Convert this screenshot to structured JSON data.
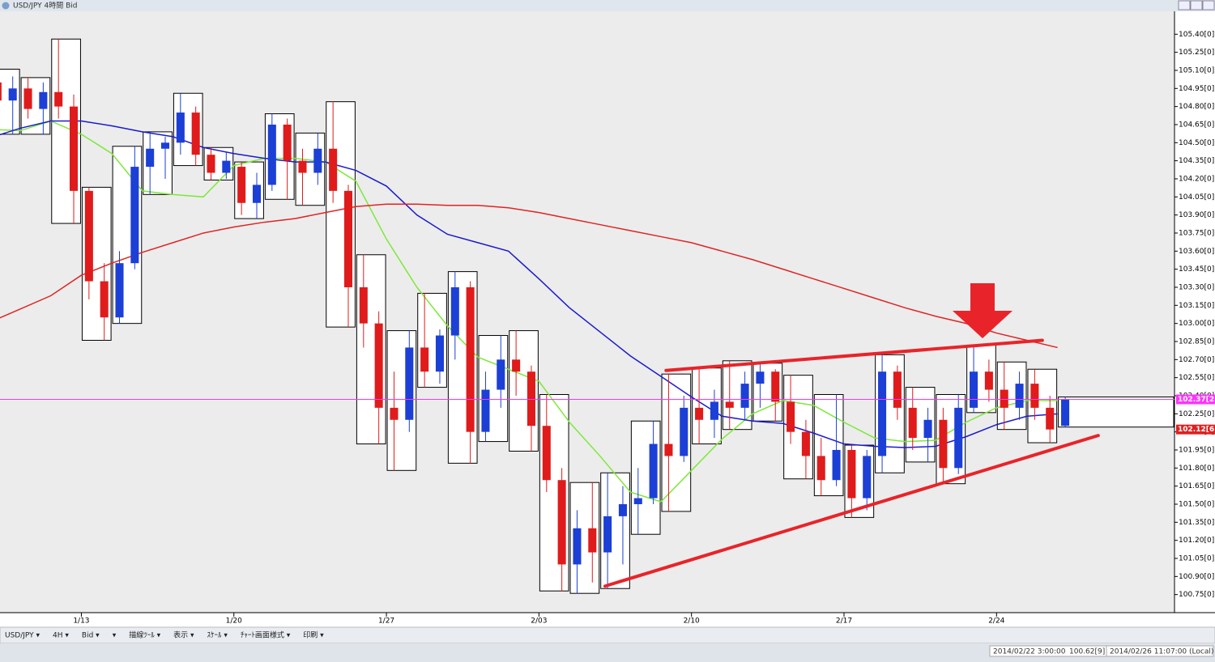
{
  "window": {
    "title": "USD/JPY 4時間 Bid"
  },
  "toolbar": {
    "items": [
      "USD/JPY ▾",
      "4H ▾",
      "Bid ▾",
      "▾",
      "描線ﾂｰﾙ ▾",
      "表示 ▾",
      "ｽｹｰﾙ ▾",
      "ﾁｬｰﾄ画面様式 ▾",
      "印刷 ▾"
    ]
  },
  "status": {
    "cursor_time": "2014/02/22 3:00:00",
    "cursor_price": "100.62[9]",
    "local_time": "2014/02/26 11:07:00 (Local)"
  },
  "chart_data": {
    "type": "candlestick",
    "xlim": [
      2,
      233
    ],
    "ylim": [
      100.6,
      105.59
    ],
    "xticks": [
      {
        "value": 18,
        "label": "1/13"
      },
      {
        "value": 48,
        "label": "1/20"
      },
      {
        "value": 78,
        "label": "1/27"
      },
      {
        "value": 108,
        "label": "2/03"
      },
      {
        "value": 138,
        "label": "2/10"
      },
      {
        "value": 168,
        "label": "2/17"
      },
      {
        "value": 198,
        "label": "2/24"
      }
    ],
    "yticks": [
      {
        "value": 100.75,
        "label": "100.75[0]"
      },
      {
        "value": 100.9,
        "label": "100.90[0]"
      },
      {
        "value": 101.05,
        "label": "101.05[0]"
      },
      {
        "value": 101.2,
        "label": "101.20[0]"
      },
      {
        "value": 101.35,
        "label": "101.35[0]"
      },
      {
        "value": 101.5,
        "label": "101.50[0]"
      },
      {
        "value": 101.65,
        "label": "101.65[0]"
      },
      {
        "value": 101.8,
        "label": "101.80[0]"
      },
      {
        "value": 101.95,
        "label": "101.95[0]"
      },
      {
        "value": 102.1,
        "label": "102.10[0]"
      },
      {
        "value": 102.25,
        "label": "102.25[0]"
      },
      {
        "value": 102.4,
        "label": "102.40[0]"
      },
      {
        "value": 102.55,
        "label": "102.55[0]"
      },
      {
        "value": 102.7,
        "label": "102.70[0]"
      },
      {
        "value": 102.85,
        "label": "102.85[0]"
      },
      {
        "value": 103.0,
        "label": "103.00[0]"
      },
      {
        "value": 103.15,
        "label": "103.15[0]"
      },
      {
        "value": 103.3,
        "label": "103.30[0]"
      },
      {
        "value": 103.45,
        "label": "103.45[0]"
      },
      {
        "value": 103.6,
        "label": "103.60[0]"
      },
      {
        "value": 103.75,
        "label": "103.75[0]"
      },
      {
        "value": 103.9,
        "label": "103.90[0]"
      },
      {
        "value": 104.05,
        "label": "104.05[0]"
      },
      {
        "value": 104.2,
        "label": "104.20[0]"
      },
      {
        "value": 104.35,
        "label": "104.35[0]"
      },
      {
        "value": 104.5,
        "label": "104.50[0]"
      },
      {
        "value": 104.65,
        "label": "104.65[0]"
      },
      {
        "value": 104.8,
        "label": "104.80[0]"
      },
      {
        "value": 104.95,
        "label": "104.95[0]"
      },
      {
        "value": 105.1,
        "label": "105.10[0]"
      },
      {
        "value": 105.25,
        "label": "105.25[0]"
      },
      {
        "value": 105.4,
        "label": "105.40[0]"
      }
    ],
    "up_color": "#1c3fd6",
    "down_color": "#e01b1b",
    "candles": {
      "x": [
        1.5,
        4.5,
        7.5,
        10.5,
        13.5,
        16.5,
        19.5,
        22.5,
        25.5,
        28.5,
        31.5,
        34.5,
        37.5,
        40.5,
        43.5,
        46.5,
        49.5,
        52.5,
        55.5,
        58.5,
        61.5,
        64.5,
        67.5,
        70.5,
        73.5,
        76.5,
        79.5,
        82.5,
        85.5,
        88.5,
        91.5,
        94.5,
        97.5,
        100.5,
        103.5,
        106.5,
        109.5,
        112.5,
        115.5,
        118.5,
        121.5,
        124.5,
        127.5,
        130.5,
        133.5,
        136.5,
        139.5,
        142.5,
        145.5,
        148.5,
        151.5,
        154.5,
        157.5,
        160.5,
        163.5,
        166.5,
        169.5,
        172.5,
        175.5,
        178.5,
        181.5,
        184.5,
        187.5,
        190.5,
        193.5,
        196.5,
        199.5,
        202.5,
        205.5,
        208.5,
        211.5
      ],
      "open": [
        105.0,
        104.85,
        104.95,
        104.78,
        104.92,
        104.8,
        104.1,
        103.35,
        103.05,
        103.5,
        104.3,
        104.45,
        104.5,
        104.75,
        104.4,
        104.25,
        104.3,
        104.0,
        104.15,
        104.65,
        104.35,
        104.25,
        104.45,
        104.1,
        103.3,
        103.0,
        102.3,
        102.2,
        102.8,
        102.6,
        102.9,
        103.3,
        102.1,
        102.45,
        102.7,
        102.6,
        102.15,
        101.7,
        101.0,
        101.3,
        101.1,
        101.4,
        101.5,
        101.55,
        102.0,
        101.9,
        102.3,
        102.2,
        102.35,
        102.3,
        102.5,
        102.6,
        102.35,
        102.1,
        101.9,
        101.7,
        101.95,
        101.55,
        101.9,
        102.6,
        102.3,
        102.05,
        102.2,
        101.8,
        102.3,
        102.6,
        102.45,
        102.3,
        102.5,
        102.3,
        102.15
      ],
      "high": [
        105.11,
        105.05,
        105.04,
        105.0,
        105.36,
        104.9,
        104.13,
        103.5,
        103.6,
        104.47,
        104.59,
        104.55,
        104.91,
        104.8,
        104.46,
        104.42,
        104.34,
        104.25,
        104.74,
        104.7,
        104.45,
        104.58,
        104.84,
        104.15,
        103.57,
        103.1,
        102.6,
        102.94,
        103.25,
        102.95,
        103.43,
        103.35,
        102.6,
        102.9,
        102.94,
        102.65,
        102.41,
        101.8,
        101.45,
        101.68,
        101.76,
        101.65,
        101.8,
        102.19,
        102.58,
        102.4,
        102.63,
        102.45,
        102.69,
        102.6,
        102.67,
        102.62,
        102.57,
        102.2,
        102.05,
        102.41,
        101.99,
        101.95,
        102.74,
        102.65,
        102.47,
        102.3,
        102.3,
        102.41,
        102.82,
        102.7,
        102.68,
        102.6,
        102.62,
        102.4,
        102.39
      ],
      "low": [
        104.8,
        104.57,
        104.7,
        104.57,
        104.7,
        103.83,
        103.2,
        102.86,
        103.0,
        103.45,
        104.07,
        104.2,
        104.4,
        104.31,
        104.19,
        104.2,
        103.9,
        103.87,
        104.1,
        104.03,
        103.98,
        104.15,
        104.0,
        102.97,
        102.8,
        102.0,
        101.78,
        102.1,
        102.47,
        102.5,
        102.7,
        101.84,
        102.02,
        102.3,
        102.4,
        101.94,
        101.6,
        100.78,
        100.76,
        100.85,
        100.8,
        101.0,
        101.25,
        101.5,
        101.44,
        101.85,
        102.0,
        102.05,
        102.12,
        102.2,
        102.3,
        102.19,
        102.0,
        101.71,
        101.57,
        101.65,
        101.39,
        101.45,
        101.76,
        102.2,
        101.95,
        101.85,
        101.67,
        101.75,
        102.26,
        102.35,
        102.12,
        102.2,
        102.2,
        102.01,
        102.14
      ],
      "close": [
        104.85,
        104.95,
        104.78,
        104.92,
        104.8,
        104.1,
        103.35,
        103.05,
        103.5,
        104.3,
        104.45,
        104.5,
        104.75,
        104.4,
        104.25,
        104.35,
        104.0,
        104.15,
        104.65,
        104.35,
        104.25,
        104.45,
        104.1,
        103.3,
        103.0,
        102.3,
        102.2,
        102.8,
        102.6,
        102.9,
        103.3,
        102.1,
        102.45,
        102.7,
        102.6,
        102.15,
        101.7,
        101.0,
        101.3,
        101.1,
        101.4,
        101.5,
        101.55,
        102.0,
        101.9,
        102.3,
        102.2,
        102.35,
        102.3,
        102.5,
        102.6,
        102.35,
        102.1,
        101.9,
        101.7,
        101.95,
        101.55,
        101.9,
        102.6,
        102.3,
        102.05,
        102.2,
        101.8,
        102.3,
        102.6,
        102.45,
        102.3,
        102.5,
        102.3,
        102.12,
        102.37
      ]
    },
    "days": {
      "x": [
        0,
        6,
        12,
        18,
        24,
        30,
        36,
        42,
        48,
        54,
        60,
        66,
        72,
        78,
        84,
        90,
        96,
        102,
        108,
        114,
        120,
        126,
        132,
        138,
        144,
        150,
        156,
        162,
        168,
        174,
        180,
        186,
        192,
        198,
        204,
        210
      ],
      "high": [
        105.11,
        105.04,
        105.36,
        104.13,
        104.47,
        104.59,
        104.91,
        104.46,
        104.34,
        104.74,
        104.58,
        104.84,
        103.57,
        102.94,
        103.25,
        103.43,
        102.9,
        102.94,
        102.41,
        101.68,
        101.76,
        102.19,
        102.58,
        102.63,
        102.69,
        102.67,
        102.57,
        102.41,
        101.99,
        102.74,
        102.47,
        102.41,
        102.82,
        102.68,
        102.62,
        102.39
      ],
      "low": [
        104.57,
        104.57,
        103.83,
        102.86,
        103.0,
        104.07,
        104.31,
        104.19,
        103.87,
        104.03,
        103.98,
        102.97,
        102.0,
        101.78,
        102.47,
        101.84,
        102.02,
        101.94,
        100.78,
        100.76,
        100.8,
        101.25,
        101.44,
        102.0,
        102.12,
        102.19,
        101.71,
        101.57,
        101.39,
        101.76,
        101.85,
        101.67,
        102.26,
        102.12,
        102.01,
        102.14
      ]
    },
    "moving_averages": [
      {
        "color": "#7ee83a",
        "values": [
          104.61,
          104.6,
          104.68,
          104.57,
          104.41,
          104.1,
          104.07,
          104.05,
          104.31,
          104.37,
          104.37,
          104.34,
          104.18,
          103.7,
          103.3,
          102.98,
          102.72,
          102.62,
          102.52,
          102.18,
          101.9,
          101.6,
          101.52,
          101.78,
          102.04,
          102.25,
          102.36,
          102.32,
          102.18,
          102.05,
          102.02,
          102.03,
          102.18,
          102.3,
          102.36,
          102.36
        ]
      },
      {
        "color": "#1a1ad0",
        "values": [
          104.54,
          104.62,
          104.68,
          104.68,
          104.64,
          104.59,
          104.55,
          104.46,
          104.41,
          104.37,
          104.34,
          104.34,
          104.27,
          104.14,
          103.9,
          103.74,
          103.67,
          103.6,
          103.37,
          103.13,
          102.93,
          102.73,
          102.56,
          102.39,
          102.23,
          102.19,
          102.17,
          102.09,
          102.0,
          101.98,
          101.97,
          101.98,
          102.06,
          102.16,
          102.23,
          102.25
        ]
      },
      {
        "color": "#e02424",
        "values": [
          103.01,
          103.12,
          103.23,
          103.4,
          103.5,
          103.59,
          103.67,
          103.75,
          103.8,
          103.84,
          103.87,
          103.92,
          103.97,
          103.99,
          103.99,
          103.98,
          103.98,
          103.96,
          103.92,
          103.87,
          103.82,
          103.77,
          103.72,
          103.67,
          103.6,
          103.53,
          103.45,
          103.37,
          103.29,
          103.21,
          103.13,
          103.06,
          103.0,
          102.92,
          102.86,
          102.8
        ]
      }
    ],
    "trendlines": [
      {
        "color": "#e8242a",
        "x": [
          133,
          207
        ],
        "y": [
          102.61,
          102.86
        ]
      },
      {
        "color": "#e8242a",
        "x": [
          121,
          218
        ],
        "y": [
          100.82,
          102.07
        ]
      }
    ],
    "price_lines": [
      {
        "value": 102.37,
        "label": "102.37[2",
        "color": "#ff33ff"
      },
      {
        "value": 102.12,
        "label": "102.12[6",
        "color": "#e02020"
      }
    ]
  }
}
